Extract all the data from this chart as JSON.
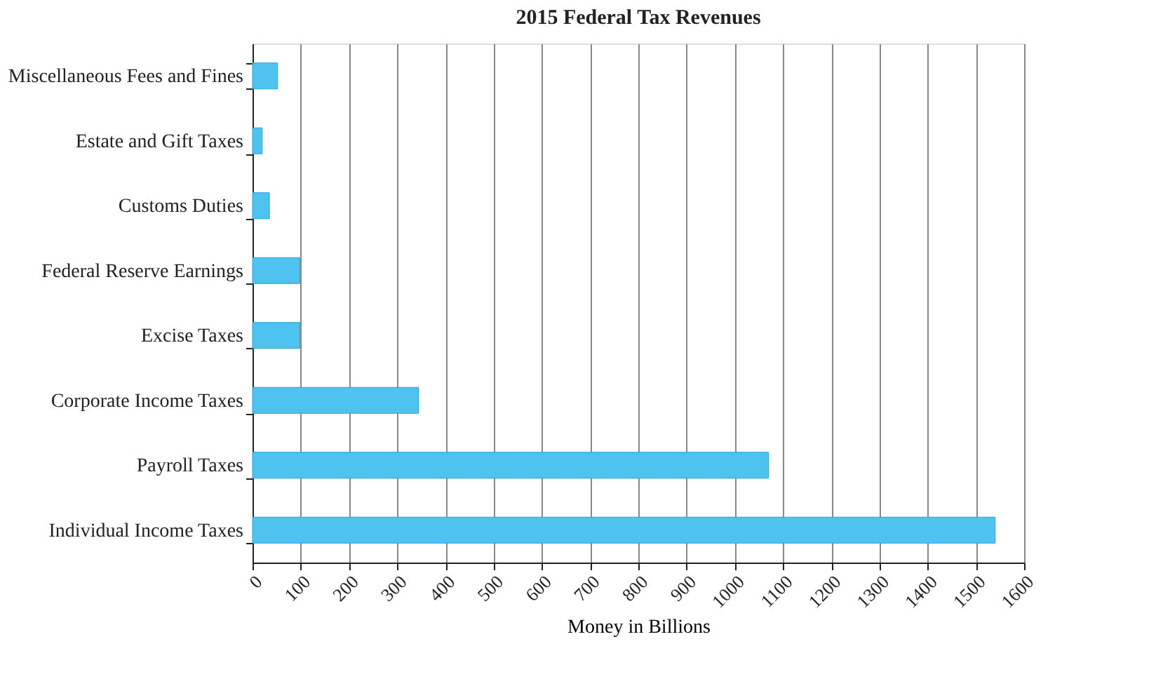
{
  "chart_data": {
    "type": "bar",
    "orientation": "horizontal",
    "title": "2015 Federal Tax Revenues",
    "xlabel": "Money in Billions",
    "categories": [
      "Miscellaneous Fees and Fines",
      "Estate and Gift Taxes",
      "Customs Duties",
      "Federal Reserve Earnings",
      "Excise Taxes",
      "Corporate Income Taxes",
      "Payroll Taxes",
      "Individual Income Taxes"
    ],
    "values": [
      52,
      20,
      35,
      98,
      98,
      344,
      1070,
      1540
    ],
    "color": "#4fc3ef",
    "xlim": [
      0,
      1600
    ],
    "xticks": [
      0,
      100,
      200,
      300,
      400,
      500,
      600,
      700,
      800,
      900,
      1000,
      1100,
      1200,
      1300,
      1400,
      1500,
      1600
    ],
    "grid": "x"
  }
}
